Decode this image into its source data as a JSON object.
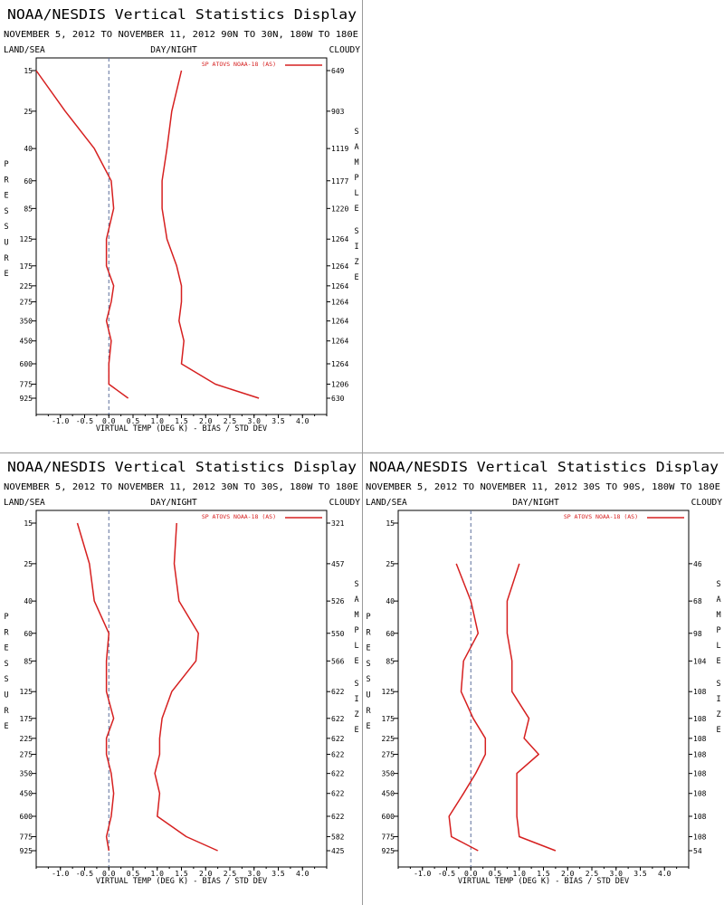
{
  "chart_data": [
    {
      "type": "line",
      "title": "NOAA/NESDIS Vertical Statistics Display",
      "subtitle": "NOVEMBER 5, 2012 TO NOVEMBER 11, 2012 90N TO 30N, 180W TO 180E",
      "header_left": "LAND/SEA",
      "header_center": "DAY/NIGHT",
      "header_right": "CLOUDY",
      "ylabel": "PRESSURE",
      "y2label": "SAMPLE SIZE",
      "xlabel": "VIRTUAL TEMP (DEG K) - BIAS / STD DEV",
      "xlim": [
        -1.5,
        4.5
      ],
      "xticks": [
        "-1.0",
        "-0.5",
        "0.0",
        "0.5",
        "1.0",
        "1.5",
        "2.0",
        "2.5",
        "3.0",
        "3.5",
        "4.0"
      ],
      "pressure_levels": [
        "15",
        "25",
        "40",
        "60",
        "85",
        "125",
        "175",
        "225",
        "275",
        "350",
        "450",
        "600",
        "775",
        "925"
      ],
      "sample_levels": [
        "15",
        "25",
        "40",
        "60",
        "85",
        "125",
        "175",
        "225",
        "275",
        "350",
        "450",
        "600",
        "775",
        "925"
      ],
      "sample_sizes": [
        "649",
        "903",
        "1119",
        "1177",
        "1220",
        "1264",
        "1264",
        "1264",
        "1264",
        "1264",
        "1264",
        "1264",
        "1206",
        "630"
      ],
      "legend": "SP ATOVS NOAA-18 (AS)",
      "series": [
        {
          "values": [
            [
              -1.5,
              15
            ],
            [
              -0.9,
              25
            ],
            [
              -0.3,
              40
            ],
            [
              0.05,
              60
            ],
            [
              0.1,
              85
            ],
            [
              -0.05,
              125
            ],
            [
              -0.05,
              175
            ],
            [
              0.1,
              225
            ],
            [
              0.05,
              275
            ],
            [
              -0.05,
              350
            ],
            [
              0.05,
              450
            ],
            [
              0.0,
              600
            ],
            [
              0.0,
              775
            ],
            [
              0.4,
              925
            ]
          ]
        },
        {
          "values": [
            [
              1.5,
              15
            ],
            [
              1.3,
              25
            ],
            [
              1.2,
              40
            ],
            [
              1.1,
              60
            ],
            [
              1.1,
              85
            ],
            [
              1.2,
              125
            ],
            [
              1.4,
              175
            ],
            [
              1.5,
              225
            ],
            [
              1.5,
              275
            ],
            [
              1.45,
              350
            ],
            [
              1.55,
              450
            ],
            [
              1.5,
              600
            ],
            [
              2.2,
              775
            ],
            [
              3.1,
              925
            ]
          ]
        }
      ]
    },
    {
      "type": "line",
      "title": "NOAA/NESDIS Vertical Statistics Display",
      "subtitle": "NOVEMBER 5, 2012 TO NOVEMBER 11, 2012 30N TO 30S, 180W TO 180E",
      "header_left": "LAND/SEA",
      "header_center": "DAY/NIGHT",
      "header_right": "CLOUDY",
      "ylabel": "PRESSURE",
      "y2label": "SAMPLE SIZE",
      "xlabel": "VIRTUAL TEMP (DEG K) - BIAS / STD DEV",
      "xlim": [
        -1.5,
        4.5
      ],
      "xticks": [
        "-1.0",
        "-0.5",
        "0.0",
        "0.5",
        "1.0",
        "1.5",
        "2.0",
        "2.5",
        "3.0",
        "3.5",
        "4.0"
      ],
      "pressure_levels": [
        "15",
        "25",
        "40",
        "60",
        "85",
        "125",
        "175",
        "225",
        "275",
        "350",
        "450",
        "600",
        "775",
        "925"
      ],
      "sample_levels": [
        "15",
        "25",
        "40",
        "60",
        "85",
        "125",
        "175",
        "225",
        "275",
        "350",
        "450",
        "600",
        "775",
        "925"
      ],
      "sample_sizes": [
        "321",
        "457",
        "526",
        "550",
        "566",
        "622",
        "622",
        "622",
        "622",
        "622",
        "622",
        "622",
        "582",
        "425"
      ],
      "legend": "SP ATOVS NOAA-18 (AS)",
      "series": [
        {
          "values": [
            [
              -0.65,
              15
            ],
            [
              -0.4,
              25
            ],
            [
              -0.3,
              40
            ],
            [
              0.0,
              60
            ],
            [
              -0.05,
              85
            ],
            [
              -0.05,
              125
            ],
            [
              0.1,
              175
            ],
            [
              -0.05,
              225
            ],
            [
              -0.05,
              275
            ],
            [
              0.05,
              350
            ],
            [
              0.1,
              450
            ],
            [
              0.05,
              600
            ],
            [
              -0.05,
              775
            ],
            [
              0.0,
              925
            ]
          ]
        },
        {
          "values": [
            [
              1.4,
              15
            ],
            [
              1.35,
              25
            ],
            [
              1.45,
              40
            ],
            [
              1.85,
              60
            ],
            [
              1.8,
              85
            ],
            [
              1.3,
              125
            ],
            [
              1.1,
              175
            ],
            [
              1.05,
              225
            ],
            [
              1.05,
              275
            ],
            [
              0.95,
              350
            ],
            [
              1.05,
              450
            ],
            [
              1.0,
              600
            ],
            [
              1.6,
              775
            ],
            [
              2.25,
              925
            ]
          ]
        }
      ]
    },
    {
      "type": "line",
      "title": "NOAA/NESDIS Vertical Statistics Display",
      "subtitle": "NOVEMBER 5, 2012 TO NOVEMBER 11, 2012 30S TO 90S, 180W TO 180E",
      "header_left": "LAND/SEA",
      "header_center": "DAY/NIGHT",
      "header_right": "CLOUDY",
      "ylabel": "PRESSURE",
      "y2label": "SAMPLE SIZE",
      "xlabel": "VIRTUAL TEMP (DEG K) - BIAS / STD DEV",
      "xlim": [
        -1.5,
        4.5
      ],
      "xticks": [
        "-1.0",
        "-0.5",
        "0.0",
        "0.5",
        "1.0",
        "1.5",
        "2.0",
        "2.5",
        "3.0",
        "3.5",
        "4.0"
      ],
      "pressure_levels": [
        "15",
        "25",
        "40",
        "60",
        "85",
        "125",
        "175",
        "225",
        "275",
        "350",
        "450",
        "600",
        "775",
        "925"
      ],
      "sample_levels": [
        "25",
        "40",
        "60",
        "85",
        "125",
        "175",
        "225",
        "275",
        "350",
        "450",
        "600",
        "775",
        "925"
      ],
      "sample_sizes": [
        "46",
        "68",
        "98",
        "104",
        "108",
        "108",
        "108",
        "108",
        "108",
        "108",
        "108",
        "108",
        "54"
      ],
      "legend": "SP ATOVS NOAA-18 (AS)",
      "series": [
        {
          "values": [
            [
              -0.3,
              25
            ],
            [
              0.0,
              40
            ],
            [
              0.15,
              60
            ],
            [
              -0.15,
              85
            ],
            [
              -0.2,
              125
            ],
            [
              0.05,
              175
            ],
            [
              0.3,
              225
            ],
            [
              0.3,
              275
            ],
            [
              0.1,
              350
            ],
            [
              -0.15,
              450
            ],
            [
              -0.45,
              600
            ],
            [
              -0.4,
              775
            ],
            [
              0.15,
              925
            ]
          ]
        },
        {
          "values": [
            [
              1.0,
              25
            ],
            [
              0.75,
              40
            ],
            [
              0.75,
              60
            ],
            [
              0.85,
              85
            ],
            [
              0.85,
              125
            ],
            [
              1.2,
              175
            ],
            [
              1.1,
              225
            ],
            [
              1.4,
              275
            ],
            [
              0.95,
              350
            ],
            [
              0.95,
              450
            ],
            [
              0.95,
              600
            ],
            [
              1.0,
              775
            ],
            [
              1.75,
              925
            ]
          ]
        }
      ]
    }
  ]
}
